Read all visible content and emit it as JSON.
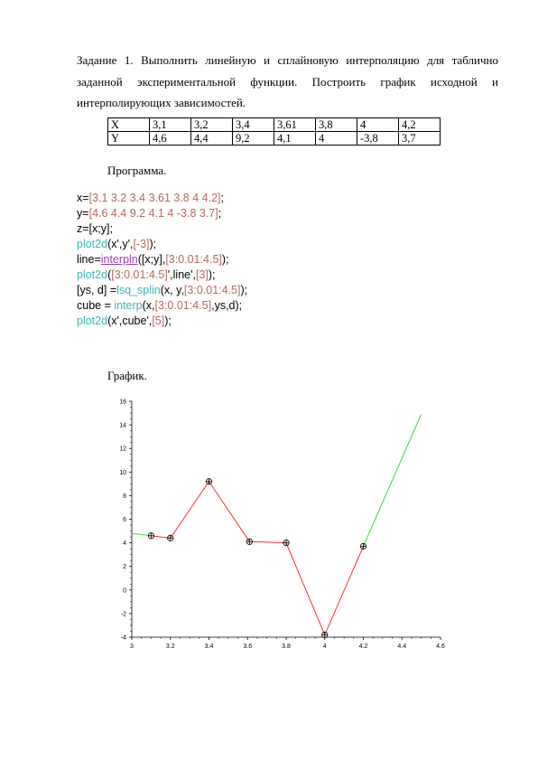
{
  "task": {
    "line1": "Задание 1. Выполнить линейную и сплайновую интерполяцию для таблично",
    "line2": "заданной экспериментальной функции. Построить график исходной и",
    "line3": "интерполирующих зависимостей."
  },
  "table": {
    "rows": [
      [
        "X",
        "3,1",
        "3,2",
        "3,4",
        "3,61",
        "3,8",
        "4",
        "4,2"
      ],
      [
        "Y",
        "4,6",
        "4,4",
        "9,2",
        "4,1",
        "4",
        "-3,8",
        "3,7"
      ]
    ]
  },
  "program_heading": "Программа.",
  "code": [
    [
      {
        "t": "x="
      },
      {
        "t": "[3.1 3.2 3.4 3.61 3.8 4 4.2]",
        "c": "num"
      },
      {
        "t": ";"
      }
    ],
    [
      {
        "t": "y="
      },
      {
        "t": "[4.6 4.4 9.2 4.1 4 -3.8 3.7]",
        "c": "num"
      },
      {
        "t": ";"
      }
    ],
    [
      {
        "t": "z=[x;y];"
      }
    ],
    [
      {
        "t": "plot2d",
        "c": "fn"
      },
      {
        "t": "(x',y',"
      },
      {
        "t": "[-3]",
        "c": "num"
      },
      {
        "t": ");"
      }
    ],
    [
      {
        "t": "line="
      },
      {
        "t": "interpln",
        "c": "fn2"
      },
      {
        "t": "([x;y],"
      },
      {
        "t": "[3:0.01:4.5]",
        "c": "num"
      },
      {
        "t": ");"
      }
    ],
    [
      {
        "t": "plot2d",
        "c": "fn"
      },
      {
        "t": "("
      },
      {
        "t": "[3:0.01:4.5]",
        "c": "num"
      },
      {
        "t": "',line',"
      },
      {
        "t": "[3]",
        "c": "num"
      },
      {
        "t": ");"
      }
    ],
    [
      {
        "t": "[ys, d] ="
      },
      {
        "t": "lsq_splin",
        "c": "fn"
      },
      {
        "t": "(x, y,"
      },
      {
        "t": "[3:0.01:4.5]",
        "c": "num"
      },
      {
        "t": ");"
      }
    ],
    [
      {
        "t": "cube = "
      },
      {
        "t": "interp",
        "c": "fn"
      },
      {
        "t": "(x,"
      },
      {
        "t": "[3:0.01:4.5]",
        "c": "num"
      },
      {
        "t": ",ys,d);"
      }
    ],
    [
      {
        "t": "plot2d",
        "c": "fn"
      },
      {
        "t": "(x',cube',"
      },
      {
        "t": "[5]",
        "c": "num"
      },
      {
        "t": ");"
      }
    ]
  ],
  "graph_heading": "График.",
  "chart_data": {
    "type": "line",
    "xlim": [
      3,
      4.6
    ],
    "ylim": [
      -4,
      16
    ],
    "x_ticks": [
      "3",
      "3.2",
      "3.4",
      "3.6",
      "3.8",
      "4",
      "4.2",
      "4.4",
      "4.6"
    ],
    "y_ticks": [
      "-4",
      "-2",
      "0",
      "2",
      "4",
      "6",
      "8",
      "10",
      "12",
      "14",
      "16"
    ],
    "grid": false,
    "series": [
      {
        "type": "markers",
        "marker": "circle-plus",
        "color": "#000000",
        "points": [
          [
            3.1,
            4.6
          ],
          [
            3.2,
            4.4
          ],
          [
            3.4,
            9.2
          ],
          [
            3.61,
            4.1
          ],
          [
            3.8,
            4
          ],
          [
            4,
            -3.8
          ],
          [
            4.2,
            3.7
          ]
        ]
      },
      {
        "type": "line",
        "color": "#2ed02e",
        "points": [
          [
            3.0,
            4.8
          ],
          [
            3.1,
            4.6
          ]
        ]
      },
      {
        "type": "line",
        "color": "#2ed02e",
        "points": [
          [
            4.2,
            3.7
          ],
          [
            4.5,
            14.9
          ]
        ]
      },
      {
        "type": "line",
        "color": "#ff1a1a",
        "points": [
          [
            3.1,
            4.6
          ],
          [
            3.2,
            4.4
          ],
          [
            3.4,
            9.2
          ],
          [
            3.61,
            4.1
          ],
          [
            3.8,
            4
          ],
          [
            4,
            -3.8
          ],
          [
            4.2,
            3.7
          ]
        ]
      }
    ]
  }
}
